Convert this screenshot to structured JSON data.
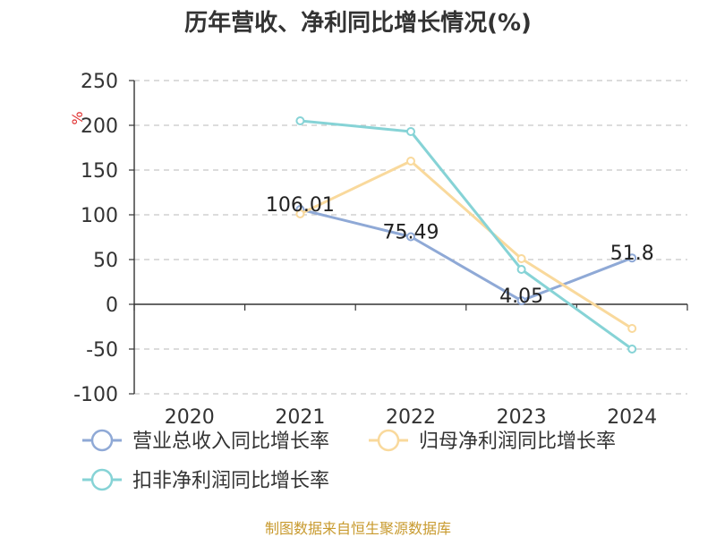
{
  "chart_data": {
    "type": "line",
    "title": "历年营收、净利同比增长情况(%)",
    "ylabel": "%",
    "categories": [
      "2020",
      "2021",
      "2022",
      "2023",
      "2024"
    ],
    "ylim": [
      -100,
      250
    ],
    "yticks": [
      250,
      200,
      150,
      100,
      50,
      0,
      -50,
      -100
    ],
    "grid": true,
    "legend_position": "bottom",
    "series": [
      {
        "name": "营业总收入同比增长率",
        "color": "#8fa9d6",
        "values": [
          null,
          106.01,
          75.49,
          4.05,
          51.8
        ],
        "data_labels": [
          null,
          "106.01",
          "75.49",
          "4.05",
          "51.8"
        ]
      },
      {
        "name": "归母净利润同比增长率",
        "color": "#f9d99c",
        "values": [
          null,
          101,
          160,
          51,
          -27
        ],
        "data_labels": [
          null,
          null,
          null,
          null,
          null
        ]
      },
      {
        "name": "扣非净利润同比增长率",
        "color": "#86d3d6",
        "values": [
          null,
          205,
          193,
          39,
          -50
        ],
        "data_labels": [
          null,
          null,
          null,
          null,
          null
        ]
      }
    ]
  },
  "footer": "制图数据来自恒生聚源数据库"
}
